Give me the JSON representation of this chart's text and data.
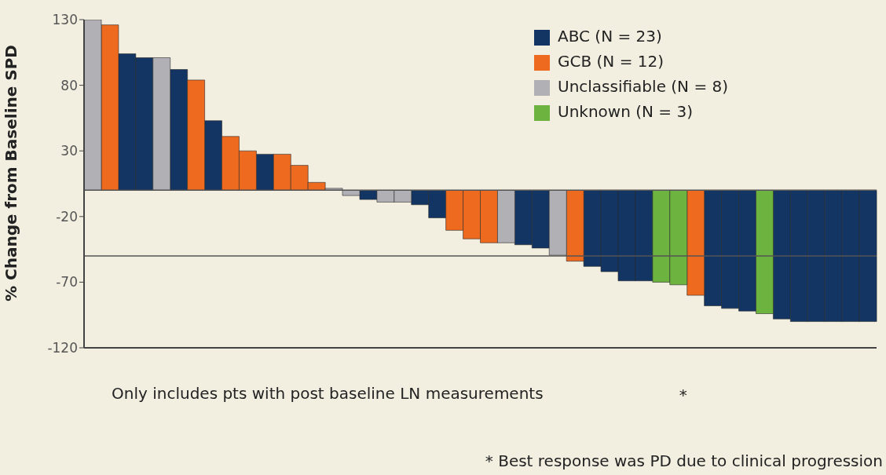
{
  "chart_data": {
    "type": "bar",
    "ylabel": "% Change from Baseline SPD",
    "stacked": true,
    "categories": [
      null,
      null,
      null,
      null,
      null,
      null,
      null,
      null,
      null,
      null,
      null,
      null,
      null,
      null,
      null,
      null,
      null,
      null,
      null,
      null,
      null,
      null,
      null,
      null,
      null,
      null,
      null,
      null,
      null,
      null,
      null,
      null,
      null,
      null,
      null,
      null,
      null,
      null,
      null,
      null,
      null,
      null,
      null,
      null,
      null,
      null
    ],
    "series": [
      {
        "name": "ABC (N = 23)",
        "color": "#123564",
        "values": [
          null,
          null,
          104,
          101,
          null,
          92,
          null,
          53,
          null,
          null,
          27.5,
          null,
          null,
          null,
          null,
          null,
          -7,
          null,
          null,
          -11,
          -21,
          null,
          null,
          null,
          null,
          -41.5,
          -44,
          null,
          null,
          -58,
          -62,
          -69,
          -69,
          null,
          null,
          null,
          -88,
          -90,
          -92,
          null,
          -98,
          -100,
          -100,
          -100,
          -100,
          -100
        ]
      },
      {
        "name": "GCB (N = 12)",
        "color": "#ee6a1f",
        "values": [
          null,
          126,
          null,
          null,
          null,
          null,
          84,
          null,
          41,
          30,
          null,
          27.5,
          19,
          6,
          null,
          null,
          null,
          null,
          null,
          null,
          null,
          -30.5,
          -37,
          -40,
          null,
          null,
          null,
          null,
          -54,
          null,
          null,
          null,
          null,
          null,
          null,
          -80,
          null,
          null,
          null,
          null,
          null,
          null,
          null,
          null,
          null,
          null
        ]
      },
      {
        "name": "Unclassifiable (N = 8)",
        "color": "#b1b1b5",
        "values": [
          130,
          null,
          null,
          null,
          101,
          null,
          null,
          null,
          null,
          null,
          null,
          null,
          null,
          null,
          1.5,
          -4,
          null,
          -9,
          -9,
          null,
          null,
          null,
          null,
          null,
          -40,
          null,
          null,
          -49.5,
          null,
          null,
          null,
          null,
          null,
          null,
          null,
          null,
          null,
          null,
          null,
          null,
          null,
          null,
          null,
          null,
          null,
          null
        ]
      },
      {
        "name": "Unknown (N = 3)",
        "color": "#6db33f",
        "values": [
          null,
          null,
          null,
          null,
          null,
          null,
          null,
          null,
          null,
          null,
          null,
          null,
          null,
          null,
          null,
          null,
          null,
          null,
          null,
          null,
          null,
          null,
          null,
          null,
          null,
          null,
          null,
          null,
          null,
          null,
          null,
          null,
          null,
          -70,
          -72,
          null,
          null,
          null,
          null,
          -94,
          null,
          null,
          null,
          null,
          null,
          null
        ]
      }
    ],
    "ylim": [
      -120,
      130
    ],
    "yticks": [
      -120,
      -70,
      -20,
      30,
      80,
      130
    ],
    "ref_lines": [
      {
        "axis": "y",
        "value": -50,
        "color": "#555555"
      }
    ],
    "legend": "top right",
    "annotations": [
      "Only includes pts with post baseline LN measurements",
      "*",
      "* Best response was PD due to clinical progression"
    ]
  }
}
